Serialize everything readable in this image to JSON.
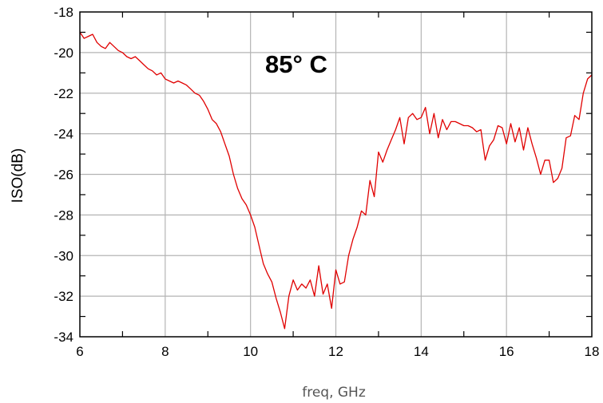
{
  "chart_data": {
    "type": "line",
    "annotation": "85° C",
    "xlabel": "freq, GHz",
    "ylabel": "ISO(dB)",
    "xlim": [
      6,
      18
    ],
    "ylim": [
      -34,
      -18
    ],
    "x_ticks": [
      6,
      8,
      10,
      12,
      14,
      16,
      18
    ],
    "y_ticks": [
      -34,
      -32,
      -30,
      -28,
      -26,
      -24,
      -22,
      -20,
      -18
    ],
    "grid": true,
    "line_color": "#e00000",
    "grid_color": "#b4b4b4",
    "series": [
      {
        "x": [
          6.0,
          6.1,
          6.2,
          6.3,
          6.4,
          6.5,
          6.6,
          6.7,
          6.8,
          6.9,
          7.0,
          7.1,
          7.2,
          7.3,
          7.4,
          7.5,
          7.6,
          7.7,
          7.8,
          7.9,
          8.0,
          8.1,
          8.2,
          8.3,
          8.4,
          8.5,
          8.6,
          8.7,
          8.8,
          8.9,
          9.0,
          9.1,
          9.2,
          9.3,
          9.4,
          9.5,
          9.6,
          9.7,
          9.8,
          9.9,
          10.0,
          10.1,
          10.2,
          10.3,
          10.4,
          10.5,
          10.6,
          10.7,
          10.8,
          10.9,
          11.0,
          11.1,
          11.2,
          11.3,
          11.4,
          11.5,
          11.6,
          11.7,
          11.8,
          11.9,
          12.0,
          12.1,
          12.2,
          12.3,
          12.4,
          12.5,
          12.6,
          12.7,
          12.8,
          12.9,
          13.0,
          13.1,
          13.2,
          13.3,
          13.4,
          13.5,
          13.6,
          13.7,
          13.8,
          13.9,
          14.0,
          14.1,
          14.2,
          14.3,
          14.4,
          14.5,
          14.6,
          14.7,
          14.8,
          14.9,
          15.0,
          15.1,
          15.2,
          15.3,
          15.4,
          15.5,
          15.6,
          15.7,
          15.8,
          15.9,
          16.0,
          16.1,
          16.2,
          16.3,
          16.4,
          16.5,
          16.6,
          16.7,
          16.8,
          16.9,
          17.0,
          17.1,
          17.2,
          17.3,
          17.4,
          17.5,
          17.6,
          17.7,
          17.8,
          17.9,
          18.0
        ],
        "y": [
          -19.0,
          -19.3,
          -19.2,
          -19.1,
          -19.5,
          -19.7,
          -19.8,
          -19.5,
          -19.7,
          -19.9,
          -20.0,
          -20.2,
          -20.3,
          -20.2,
          -20.4,
          -20.6,
          -20.8,
          -20.9,
          -21.1,
          -21.0,
          -21.3,
          -21.4,
          -21.5,
          -21.4,
          -21.5,
          -21.6,
          -21.8,
          -22.0,
          -22.1,
          -22.4,
          -22.8,
          -23.3,
          -23.5,
          -23.9,
          -24.5,
          -25.1,
          -26.0,
          -26.7,
          -27.2,
          -27.5,
          -28.0,
          -28.6,
          -29.5,
          -30.4,
          -30.9,
          -31.3,
          -32.1,
          -32.8,
          -33.6,
          -32.0,
          -31.2,
          -31.7,
          -31.4,
          -31.6,
          -31.2,
          -32.0,
          -30.5,
          -31.9,
          -31.4,
          -32.6,
          -30.7,
          -31.4,
          -31.3,
          -30.0,
          -29.2,
          -28.6,
          -27.8,
          -28.0,
          -26.3,
          -27.1,
          -24.9,
          -25.4,
          -24.8,
          -24.3,
          -23.8,
          -23.2,
          -24.5,
          -23.2,
          -23.0,
          -23.3,
          -23.2,
          -22.7,
          -24.0,
          -23.0,
          -24.2,
          -23.3,
          -23.8,
          -23.4,
          -23.4,
          -23.5,
          -23.6,
          -23.6,
          -23.7,
          -23.9,
          -23.8,
          -25.3,
          -24.6,
          -24.3,
          -23.6,
          -23.7,
          -24.5,
          -23.5,
          -24.4,
          -23.7,
          -24.8,
          -23.7,
          -24.5,
          -25.2,
          -26.0,
          -25.3,
          -25.3,
          -26.4,
          -26.2,
          -25.7,
          -24.2,
          -24.1,
          -23.1,
          -23.3,
          -22.0,
          -21.3,
          -21.1
        ]
      }
    ]
  }
}
